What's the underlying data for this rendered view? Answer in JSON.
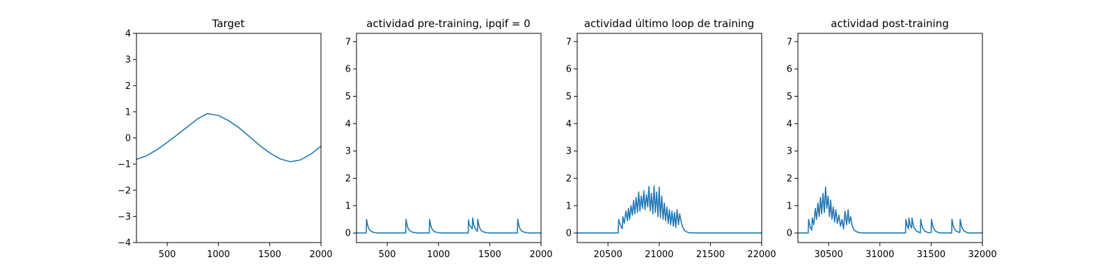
{
  "line_color": "#1f77b4",
  "chart_data": [
    {
      "type": "line",
      "title": "Target",
      "xlim": [
        200,
        2000
      ],
      "ylim": [
        -4,
        4
      ],
      "xticks": [
        500,
        1000,
        1500,
        2000
      ],
      "yticks": [
        -4,
        -3,
        -2,
        -1,
        0,
        1,
        2,
        3,
        4
      ],
      "grid": false,
      "series": [
        {
          "x": [
            200,
            300,
            400,
            500,
            600,
            700,
            800,
            890,
            1000,
            1100,
            1200,
            1300,
            1400,
            1500,
            1600,
            1700,
            1800,
            1900,
            2000
          ],
          "y": [
            -0.82,
            -0.68,
            -0.45,
            -0.17,
            0.13,
            0.43,
            0.74,
            0.93,
            0.86,
            0.66,
            0.39,
            0.06,
            -0.28,
            -0.57,
            -0.8,
            -0.91,
            -0.84,
            -0.62,
            -0.32
          ]
        }
      ]
    },
    {
      "type": "line",
      "title": "actividad pre-training, ipqif = 0",
      "xlim": [
        200,
        2000
      ],
      "ylim": [
        -0.35,
        7.3
      ],
      "xticks": [
        500,
        1000,
        1500,
        2000
      ],
      "yticks": [
        0,
        1,
        2,
        3,
        4,
        5,
        6,
        7
      ],
      "grid": false,
      "series": [
        {
          "x": [
            200,
            295,
            298,
            310,
            320,
            335,
            360,
            400,
            680,
            683,
            695,
            705,
            720,
            745,
            790,
            910,
            913,
            925,
            935,
            950,
            975,
            1020,
            1290,
            1293,
            1300,
            1330,
            1333,
            1345,
            1355,
            1380,
            1383,
            1395,
            1405,
            1420,
            1445,
            1490,
            1770,
            1773,
            1785,
            1795,
            1810,
            1835,
            1880,
            2000
          ],
          "y": [
            0,
            0,
            0.5,
            0.27,
            0.16,
            0.08,
            0.03,
            0,
            0,
            0.5,
            0.27,
            0.16,
            0.08,
            0.03,
            0,
            0,
            0.5,
            0.27,
            0.16,
            0.08,
            0.03,
            0,
            0,
            0.48,
            0.3,
            0.15,
            0.55,
            0.3,
            0.18,
            0.06,
            0.5,
            0.28,
            0.16,
            0.08,
            0.03,
            0,
            0,
            0.5,
            0.27,
            0.16,
            0.08,
            0.03,
            0,
            0
          ]
        }
      ]
    },
    {
      "type": "line",
      "title": "actividad último loop de training",
      "xlim": [
        20200,
        22000
      ],
      "ylim": [
        -0.35,
        7.3
      ],
      "xticks": [
        20500,
        21000,
        21500,
        22000
      ],
      "yticks": [
        0,
        1,
        2,
        3,
        4,
        5,
        6,
        7
      ],
      "grid": false,
      "series": [
        {
          "x": [
            20200,
            20600,
            20605,
            20620,
            20640,
            20645,
            20660,
            20675,
            20690,
            20700,
            20712,
            20725,
            20738,
            20750,
            20762,
            20775,
            20788,
            20800,
            20812,
            20825,
            20838,
            20850,
            20862,
            20875,
            20888,
            20900,
            20912,
            20925,
            20938,
            20950,
            20962,
            20975,
            20988,
            21000,
            21012,
            21025,
            21038,
            21050,
            21062,
            21075,
            21088,
            21100,
            21112,
            21125,
            21138,
            21150,
            21162,
            21175,
            21188,
            21200,
            21215,
            21230,
            21250,
            21280,
            21320,
            22000
          ],
          "y": [
            0,
            0,
            0.5,
            0.3,
            0.15,
            0.6,
            0.35,
            0.8,
            0.45,
            0.9,
            0.5,
            1.0,
            0.65,
            1.2,
            0.7,
            1.3,
            0.75,
            1.5,
            0.8,
            1.35,
            0.9,
            1.55,
            0.85,
            1.4,
            0.95,
            1.7,
            0.8,
            1.45,
            0.7,
            1.72,
            0.75,
            1.5,
            0.6,
            1.68,
            0.55,
            1.35,
            0.5,
            1.1,
            0.45,
            0.95,
            0.35,
            0.85,
            0.3,
            0.8,
            0.25,
            0.75,
            0.2,
            0.85,
            0.3,
            0.7,
            0.4,
            0.2,
            0.08,
            0.02,
            0,
            0
          ]
        }
      ]
    },
    {
      "type": "line",
      "title": "actividad post-training",
      "xlim": [
        30200,
        32000
      ],
      "ylim": [
        -0.35,
        7.3
      ],
      "xticks": [
        30500,
        31000,
        31500,
        32000
      ],
      "yticks": [
        0,
        1,
        2,
        3,
        4,
        5,
        6,
        7
      ],
      "grid": false,
      "series": [
        {
          "x": [
            30200,
            30300,
            30305,
            30320,
            30335,
            30340,
            30355,
            30370,
            30382,
            30395,
            30408,
            30420,
            30432,
            30445,
            30458,
            30470,
            30482,
            30495,
            30508,
            30520,
            30532,
            30545,
            30558,
            30570,
            30585,
            30600,
            30615,
            30630,
            30645,
            30660,
            30675,
            30690,
            30700,
            30715,
            30730,
            30750,
            30780,
            30830,
            31250,
            31253,
            31265,
            31280,
            31283,
            31295,
            31310,
            31313,
            31325,
            31335,
            31360,
            31395,
            31398,
            31410,
            31420,
            31440,
            31475,
            31500,
            31503,
            31515,
            31525,
            31545,
            31580,
            31700,
            31703,
            31715,
            31725,
            31745,
            31780,
            31783,
            31795,
            31805,
            31825,
            31860,
            32000
          ],
          "y": [
            0,
            0,
            0.5,
            0.2,
            0.1,
            0.55,
            0.3,
            0.9,
            0.5,
            1.1,
            0.6,
            1.3,
            0.7,
            1.45,
            0.75,
            1.68,
            0.9,
            1.35,
            0.6,
            1.2,
            0.5,
            0.95,
            0.4,
            0.85,
            0.35,
            0.65,
            0.25,
            0.5,
            0.15,
            0.8,
            0.3,
            0.85,
            0.35,
            0.6,
            0.25,
            0.1,
            0.03,
            0,
            0,
            0.5,
            0.28,
            0.15,
            0.55,
            0.3,
            0.18,
            0.55,
            0.3,
            0.18,
            0.06,
            0.01,
            0.5,
            0.27,
            0.16,
            0.06,
            0.01,
            0.02,
            0.5,
            0.27,
            0.16,
            0.06,
            0,
            0,
            0.5,
            0.27,
            0.16,
            0.06,
            0.02,
            0.5,
            0.27,
            0.16,
            0.06,
            0,
            0
          ]
        }
      ]
    }
  ]
}
